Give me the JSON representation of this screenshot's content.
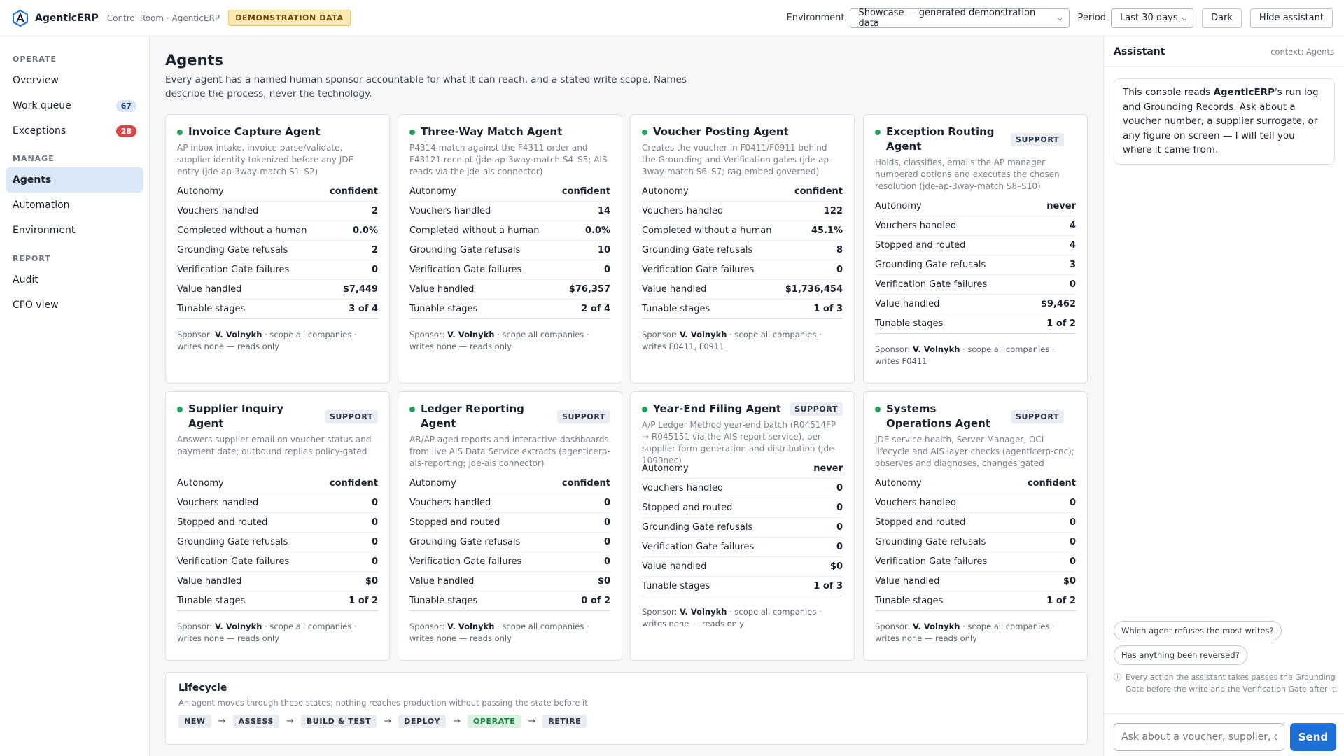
{
  "header": {
    "app_name": "AgenticERP",
    "breadcrumb": "Control Room · AgenticERP",
    "demo_badge": "DEMONSTRATION DATA",
    "environment_label": "Environment",
    "environment_value": "Showcase — generated demonstration data",
    "period_label": "Period",
    "period_value": "Last 30 days",
    "theme_button": "Dark",
    "assistant_toggle": "Hide assistant",
    "logo_icon": "agenticerp-logo-icon"
  },
  "sidebar": {
    "sections": [
      "OPERATE",
      "MANAGE",
      "REPORT"
    ],
    "items": [
      {
        "label": "Overview"
      },
      {
        "label": "Work queue",
        "count": "67",
        "count_color": "#5b8fd6"
      },
      {
        "label": "Exceptions",
        "count": "28",
        "count_color": "#d64545"
      },
      {
        "label": "Agents",
        "active": true
      },
      {
        "label": "Automation"
      },
      {
        "label": "Environment"
      },
      {
        "label": "Audit"
      },
      {
        "label": "CFO view"
      }
    ]
  },
  "page": {
    "title": "Agents",
    "subtitle": "Every agent has a named human sponsor accountable for what it can reach, and a stated write scope. Names describe the process, never the technology."
  },
  "agents": [
    {
      "name": "Invoice Capture Agent",
      "support": false,
      "status_color": "#1ea35a",
      "description": "AP inbox intake, invoice parse/validate, supplier identity tokenized before any JDE entry (jde-ap-3way-match S1–S2)",
      "rows": [
        [
          "Autonomy",
          "confident"
        ],
        [
          "Vouchers handled",
          "2"
        ],
        [
          "Completed without a human",
          "0.0%"
        ],
        [
          "Grounding Gate refusals",
          "2"
        ],
        [
          "Verification Gate failures",
          "0"
        ],
        [
          "Value handled",
          "$7,449"
        ],
        [
          "Tunable stages",
          "3 of 4"
        ]
      ],
      "sponsor_label": "Sponsor:",
      "sponsor_name": "V. Volnykh",
      "sponsor_scope": "· scope all companies ·",
      "writes": "writes none — reads only"
    },
    {
      "name": "Three-Way Match Agent",
      "support": false,
      "status_color": "#1ea35a",
      "description": "P4314 match against the F4311 order and F43121 receipt (jde-ap-3way-match S4–S5; AIS reads via the jde-ais connector)",
      "rows": [
        [
          "Autonomy",
          "confident"
        ],
        [
          "Vouchers handled",
          "14"
        ],
        [
          "Completed without a human",
          "0.0%"
        ],
        [
          "Grounding Gate refusals",
          "10"
        ],
        [
          "Verification Gate failures",
          "0"
        ],
        [
          "Value handled",
          "$76,357"
        ],
        [
          "Tunable stages",
          "2 of 4"
        ]
      ],
      "sponsor_label": "Sponsor:",
      "sponsor_name": "V. Volnykh",
      "sponsor_scope": "· scope all companies ·",
      "writes": "writes none — reads only"
    },
    {
      "name": "Voucher Posting Agent",
      "support": false,
      "status_color": "#1ea35a",
      "description": "Creates the voucher in F0411/F0911 behind the Grounding and Verification gates (jde-ap-3way-match S6–S7; rag-embed governed)",
      "rows": [
        [
          "Autonomy",
          "confident"
        ],
        [
          "Vouchers handled",
          "122"
        ],
        [
          "Completed without a human",
          "45.1%"
        ],
        [
          "Grounding Gate refusals",
          "8"
        ],
        [
          "Verification Gate failures",
          "0"
        ],
        [
          "Value handled",
          "$1,736,454"
        ],
        [
          "Tunable stages",
          "1 of 3"
        ]
      ],
      "sponsor_label": "Sponsor:",
      "sponsor_name": "V. Volnykh",
      "sponsor_scope": "· scope all companies ·",
      "writes": "writes F0411, F0911"
    },
    {
      "name": "Exception Routing Agent",
      "support": true,
      "support_label": "SUPPORT",
      "status_color": "#1ea35a",
      "description": "Holds, classifies, emails the AP manager numbered options and executes the chosen resolution (jde-ap-3way-match S8–S10)",
      "rows": [
        [
          "Autonomy",
          "never"
        ],
        [
          "Vouchers handled",
          "4"
        ],
        [
          "Stopped and routed",
          "4"
        ],
        [
          "Grounding Gate refusals",
          "3"
        ],
        [
          "Verification Gate failures",
          "0"
        ],
        [
          "Value handled",
          "$9,462"
        ],
        [
          "Tunable stages",
          "1 of 2"
        ]
      ],
      "sponsor_label": "Sponsor:",
      "sponsor_name": "V. Volnykh",
      "sponsor_scope": "· scope all companies ·",
      "writes": "writes F0411"
    },
    {
      "name": "Supplier Inquiry Agent",
      "support": true,
      "support_label": "SUPPORT",
      "status_color": "#1ea35a",
      "description": "Answers supplier email on voucher status and payment date; outbound replies policy-gated",
      "rows": [
        [
          "Autonomy",
          "confident"
        ],
        [
          "Vouchers handled",
          "0"
        ],
        [
          "Stopped and routed",
          "0"
        ],
        [
          "Grounding Gate refusals",
          "0"
        ],
        [
          "Verification Gate failures",
          "0"
        ],
        [
          "Value handled",
          "$0"
        ],
        [
          "Tunable stages",
          "1 of 2"
        ]
      ],
      "sponsor_label": "Sponsor:",
      "sponsor_name": "V. Volnykh",
      "sponsor_scope": "· scope all companies ·",
      "writes": "writes none — reads only"
    },
    {
      "name": "Ledger Reporting Agent",
      "support": true,
      "support_label": "SUPPORT",
      "status_color": "#1ea35a",
      "description": "AR/AP aged reports and interactive dashboards from live AIS Data Service extracts (agenticerp-ais-reporting; jde-ais connector)",
      "rows": [
        [
          "Autonomy",
          "confident"
        ],
        [
          "Vouchers handled",
          "0"
        ],
        [
          "Stopped and routed",
          "0"
        ],
        [
          "Grounding Gate refusals",
          "0"
        ],
        [
          "Verification Gate failures",
          "0"
        ],
        [
          "Value handled",
          "$0"
        ],
        [
          "Tunable stages",
          "0 of 2"
        ]
      ],
      "sponsor_label": "Sponsor:",
      "sponsor_name": "V. Volnykh",
      "sponsor_scope": "· scope all companies ·",
      "writes": "writes none — reads only"
    },
    {
      "name": "Year-End Filing Agent",
      "support": true,
      "support_label": "SUPPORT",
      "status_color": "#1ea35a",
      "description": "A/P Ledger Method year-end batch (R04514FP → R045151 via the AIS report service), per-supplier form generation and distribution (jde-1099nec)",
      "rows": [
        [
          "Autonomy",
          "never"
        ],
        [
          "Vouchers handled",
          "0"
        ],
        [
          "Stopped and routed",
          "0"
        ],
        [
          "Grounding Gate refusals",
          "0"
        ],
        [
          "Verification Gate failures",
          "0"
        ],
        [
          "Value handled",
          "$0"
        ],
        [
          "Tunable stages",
          "1 of 3"
        ]
      ],
      "sponsor_label": "Sponsor:",
      "sponsor_name": "V. Volnykh",
      "sponsor_scope": "· scope all companies ·",
      "writes": "writes none — reads only"
    },
    {
      "name": "Systems Operations Agent",
      "support": true,
      "support_label": "SUPPORT",
      "status_color": "#1ea35a",
      "description": "JDE service health, Server Manager, OCI lifecycle and AIS layer checks (agenticerp-cnc); observes and diagnoses, changes gated",
      "rows": [
        [
          "Autonomy",
          "confident"
        ],
        [
          "Vouchers handled",
          "0"
        ],
        [
          "Stopped and routed",
          "0"
        ],
        [
          "Grounding Gate refusals",
          "0"
        ],
        [
          "Verification Gate failures",
          "0"
        ],
        [
          "Value handled",
          "$0"
        ],
        [
          "Tunable stages",
          "1 of 2"
        ]
      ],
      "sponsor_label": "Sponsor:",
      "sponsor_name": "V. Volnykh",
      "sponsor_scope": "· scope all companies ·",
      "writes": "writes none — reads only"
    }
  ],
  "lifecycle": {
    "title": "Lifecycle",
    "subtitle": "An agent moves through these states; nothing reaches production without passing the state before it",
    "stages": [
      {
        "label": "NEW"
      },
      {
        "label": "ASSESS"
      },
      {
        "label": "BUILD & TEST"
      },
      {
        "label": "DEPLOY"
      },
      {
        "label": "OPERATE",
        "active": true
      },
      {
        "label": "RETIRE"
      }
    ],
    "arrow": "→"
  },
  "assistant": {
    "title": "Assistant",
    "context": "context: Agents",
    "message_pre": "This console reads ",
    "message_bold": "AgenticERP",
    "message_post": "'s run log and Grounding Records. Ask about a voucher number, a supplier surrogate, or any figure on screen — I will tell you where it came from.",
    "suggestions": [
      "Which agent refuses the most writes?",
      "Has anything been reversed?"
    ],
    "note_icon": "info-icon",
    "note": "Every action the assistant takes passes the Grounding Gate before the write and the Verification Gate after it.",
    "input_placeholder": "Ask about a voucher, supplier, or figure",
    "send_label": "Send"
  }
}
